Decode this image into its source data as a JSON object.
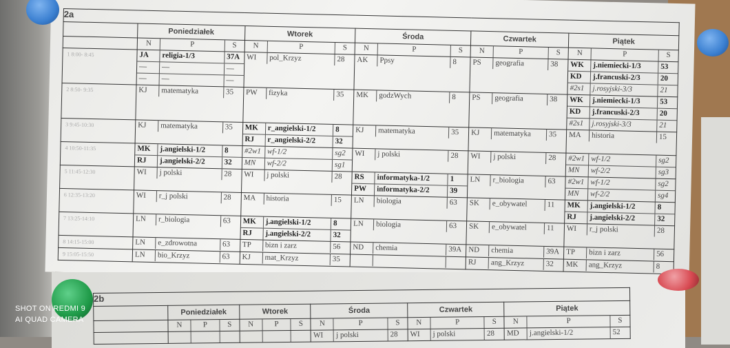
{
  "watermark": {
    "line1": "SHOT ON REDMI 9",
    "line2": "AI QUAD CAMERA"
  },
  "colors": {
    "pin_blue": "#3a7fd0",
    "pin_green": "#1f9a48",
    "pin_red": "#d84a52"
  },
  "days": [
    "Poniedziałek",
    "Wtorek",
    "Środa",
    "Czwartek",
    "Piątek"
  ],
  "cols": {
    "n": "N",
    "p": "P",
    "s": "S"
  },
  "timetable_2a": {
    "class": "2a",
    "lessons": [
      {
        "time": "1 8:00- 8:45",
        "days": [
          [
            {
              "n": "JA",
              "p": "religia-1/3",
              "s": "37A",
              "f": "bold"
            },
            {
              "n": "—",
              "p": "—",
              "s": "—"
            },
            {
              "n": "—",
              "p": "—",
              "s": "—"
            }
          ],
          [
            {
              "n": "WI",
              "p": "pol_Krzyz",
              "s": "28"
            }
          ],
          [
            {
              "n": "AK",
              "p": "Ppsy",
              "s": "8"
            }
          ],
          [
            {
              "n": "PS",
              "p": "geografia",
              "s": "38"
            }
          ],
          [
            {
              "n": "WK",
              "p": "j.niemiecki-1/3",
              "s": "53",
              "f": "bold"
            },
            {
              "n": "KD",
              "p": "j.francuski-2/3",
              "s": "20",
              "f": "bold"
            },
            {
              "n": "#2s1",
              "p": "j.rosyjski-3/3",
              "s": "21",
              "f": "italic"
            }
          ]
        ]
      },
      {
        "time": "2 8:50- 9:35",
        "days": [
          [
            {
              "n": "KJ",
              "p": "matematyka",
              "s": "35"
            }
          ],
          [
            {
              "n": "PW",
              "p": "fizyka",
              "s": "35"
            }
          ],
          [
            {
              "n": "MK",
              "p": "godzWych",
              "s": "8"
            }
          ],
          [
            {
              "n": "PS",
              "p": "geografia",
              "s": "38"
            }
          ],
          [
            {
              "n": "WK",
              "p": "j.niemiecki-1/3",
              "s": "53",
              "f": "bold"
            },
            {
              "n": "KD",
              "p": "j.francuski-2/3",
              "s": "20",
              "f": "bold"
            },
            {
              "n": "#2s1",
              "p": "j.rosyjski-3/3",
              "s": "21",
              "f": "italic"
            }
          ]
        ]
      },
      {
        "time": "3 9:45-10:30",
        "days": [
          [
            {
              "n": "KJ",
              "p": "matematyka",
              "s": "35"
            }
          ],
          [
            {
              "n": "MK",
              "p": "r_angielski-1/2",
              "s": "8",
              "f": "bold"
            },
            {
              "n": "RJ",
              "p": "r_angielski-2/2",
              "s": "32",
              "f": "bold"
            }
          ],
          [
            {
              "n": "KJ",
              "p": "matematyka",
              "s": "35"
            }
          ],
          [
            {
              "n": "KJ",
              "p": "matematyka",
              "s": "35"
            }
          ],
          [
            {
              "n": "MA",
              "p": "historia",
              "s": "15"
            }
          ]
        ]
      },
      {
        "time": "4 10:50-11:35",
        "days": [
          [
            {
              "n": "MK",
              "p": "j.angielski-1/2",
              "s": "8",
              "f": "bold"
            },
            {
              "n": "RJ",
              "p": "j.angielski-2/2",
              "s": "32",
              "f": "bold"
            }
          ],
          [
            {
              "n": "#2w1",
              "p": "wf-1/2",
              "s": "sg2",
              "f": "italic"
            },
            {
              "n": "MN",
              "p": "wf-2/2",
              "s": "sg1",
              "f": "italic"
            }
          ],
          [
            {
              "n": "WI",
              "p": "j polski",
              "s": "28"
            }
          ],
          [
            {
              "n": "WI",
              "p": "j polski",
              "s": "28"
            }
          ],
          [
            {
              "n": "#2w1",
              "p": "wf-1/2",
              "s": "sg2",
              "f": "italic"
            },
            {
              "n": "MN",
              "p": "wf-2/2",
              "s": "sg3",
              "f": "italic"
            }
          ]
        ]
      },
      {
        "time": "5 11:45-12:30",
        "days": [
          [
            {
              "n": "WI",
              "p": "j polski",
              "s": "28"
            }
          ],
          [
            {
              "n": "WI",
              "p": "j polski",
              "s": "28"
            }
          ],
          [
            {
              "n": "RS",
              "p": "informatyka-1/2",
              "s": "1",
              "f": "bold"
            },
            {
              "n": "PW",
              "p": "informatyka-2/2",
              "s": "39",
              "f": "bold"
            }
          ],
          [
            {
              "n": "LN",
              "p": "r_biologia",
              "s": "63"
            }
          ],
          [
            {
              "n": "#2w1",
              "p": "wf-1/2",
              "s": "sg2",
              "f": "italic"
            },
            {
              "n": "MN",
              "p": "wf-2/2",
              "s": "sg4",
              "f": "italic"
            }
          ]
        ]
      },
      {
        "time": "6 12:35-13:20",
        "days": [
          [
            {
              "n": "WI",
              "p": "r_j polski",
              "s": "28"
            }
          ],
          [
            {
              "n": "MA",
              "p": "historia",
              "s": "15"
            }
          ],
          [
            {
              "n": "LN",
              "p": "biologia",
              "s": "63"
            }
          ],
          [
            {
              "n": "SK",
              "p": "e_obywatel",
              "s": "11"
            }
          ],
          [
            {
              "n": "MK",
              "p": "j.angielski-1/2",
              "s": "8",
              "f": "bold"
            },
            {
              "n": "RJ",
              "p": "j.angielski-2/2",
              "s": "32",
              "f": "bold"
            }
          ]
        ]
      },
      {
        "time": "7 13:25-14:10",
        "days": [
          [
            {
              "n": "LN",
              "p": "r_biologia",
              "s": "63"
            }
          ],
          [
            {
              "n": "MK",
              "p": "j.angielski-1/2",
              "s": "8",
              "f": "bold"
            },
            {
              "n": "RJ",
              "p": "j.angielski-2/2",
              "s": "32",
              "f": "bold"
            }
          ],
          [
            {
              "n": "LN",
              "p": "biologia",
              "s": "63"
            }
          ],
          [
            {
              "n": "SK",
              "p": "e_obywatel",
              "s": "11"
            }
          ],
          [
            {
              "n": "WI",
              "p": "r_j polski",
              "s": "28"
            }
          ]
        ]
      },
      {
        "time": "8 14:15-15:00",
        "days": [
          [
            {
              "n": "LN",
              "p": "e_zdrowotna",
              "s": "63"
            }
          ],
          [
            {
              "n": "TP",
              "p": "bizn i zarz",
              "s": "56"
            }
          ],
          [
            {
              "n": "ND",
              "p": "chemia",
              "s": "39A"
            }
          ],
          [
            {
              "n": "ND",
              "p": "chemia",
              "s": "39A"
            }
          ],
          [
            {
              "n": "TP",
              "p": "bizn i zarz",
              "s": "56"
            }
          ]
        ]
      },
      {
        "time": "9 15:05-15:50",
        "days": [
          [
            {
              "n": "LN",
              "p": "bio_Krzyz",
              "s": "63"
            }
          ],
          [
            {
              "n": "KJ",
              "p": "mat_Krzyz",
              "s": "35"
            }
          ],
          [
            {
              "n": "",
              "p": "",
              "s": ""
            }
          ],
          [
            {
              "n": "RJ",
              "p": "ang_Krzyz",
              "s": "32"
            }
          ],
          [
            {
              "n": "MK",
              "p": "ang_Krzyz",
              "s": "8"
            }
          ]
        ]
      }
    ]
  },
  "timetable_2b": {
    "class": "2b",
    "lessons": [
      {
        "time": "",
        "days": [
          [
            {
              "n": "",
              "p": "",
              "s": ""
            }
          ],
          [
            {
              "n": "",
              "p": "",
              "s": ""
            }
          ],
          [
            {
              "n": "WI",
              "p": "j polski",
              "s": "28"
            }
          ],
          [
            {
              "n": "WI",
              "p": "j polski",
              "s": "28"
            }
          ],
          [
            {
              "n": "MD",
              "p": "j.angielski-1/2",
              "s": "52"
            }
          ]
        ]
      }
    ]
  }
}
